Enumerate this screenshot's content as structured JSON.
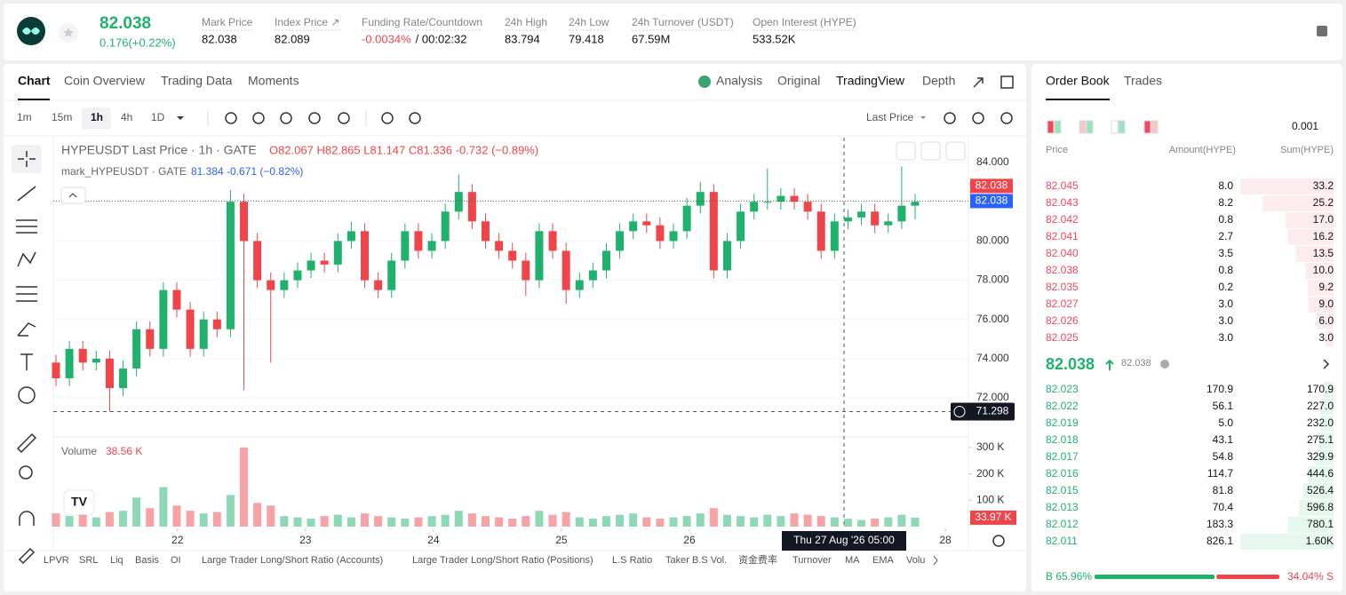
{
  "header": {
    "price": "82.038",
    "change": "0.176(+0.22%)",
    "stats": [
      {
        "label": "Mark Price",
        "value": "82.038"
      },
      {
        "label": "Index Price ↗",
        "value": "82.089"
      },
      {
        "label": "Funding Rate/Countdown",
        "value": "-0.0034%",
        "extra": "/ 00:02:32"
      },
      {
        "label": "24h High",
        "value": "83.794"
      },
      {
        "label": "24h Low",
        "value": "79.418"
      },
      {
        "label": "24h Turnover (USDT)",
        "value": "67.59M"
      },
      {
        "label": "Open Interest (HYPE)",
        "value": "533.52K"
      }
    ]
  },
  "chart_tabs": [
    "Chart",
    "Coin Overview",
    "Trading Data",
    "Moments"
  ],
  "view_tabs": [
    "Analysis",
    "Original",
    "TradingView",
    "Depth"
  ],
  "intervals": [
    "1m",
    "15m",
    "1h",
    "4h",
    "1D"
  ],
  "price_type": "Last Price",
  "chart_data": {
    "type": "candlestick",
    "legend": "HYPEUSDT Last Price · 1h · GATE",
    "ohlc_text": "O82.067 H82.865 L81.147 C81.336 -0.732 (−0.89%)",
    "mark_legend": "mark_HYPEUSDT · GATE",
    "mark_text": "81.384 -0.671 (−0.82%)",
    "open": [
      73.8,
      73.0,
      74.5,
      73.8,
      74.0,
      72.5,
      73.5,
      75.5,
      74.5,
      77.5,
      76.5,
      74.5,
      76.0,
      75.5,
      82.0,
      80.0,
      78.0,
      77.5,
      78.0,
      78.5,
      79.0,
      78.8,
      80.0,
      80.5,
      78.0,
      77.5,
      79.0,
      80.5,
      79.5,
      80.0,
      81.5,
      82.5,
      81.0,
      80.0,
      79.5,
      79.0,
      78.0,
      80.5,
      79.5,
      77.5,
      78.0,
      78.5,
      79.5,
      80.5,
      81.0,
      80.8,
      80.0,
      80.5,
      81.8,
      82.5,
      78.5,
      80.0,
      81.5,
      82.0,
      82.0,
      82.3,
      82.0,
      81.5,
      79.5,
      81.0,
      81.2,
      81.5,
      80.8,
      81.0,
      81.8
    ],
    "high": [
      74.2,
      74.9,
      74.9,
      74.4,
      74.4,
      73.9,
      75.9,
      75.9,
      77.9,
      77.9,
      76.9,
      76.4,
      76.4,
      82.6,
      82.4,
      80.4,
      78.4,
      78.4,
      78.9,
      79.4,
      79.4,
      80.4,
      81.0,
      80.9,
      78.4,
      79.4,
      80.9,
      80.9,
      80.4,
      81.9,
      83.4,
      82.9,
      81.4,
      80.4,
      79.9,
      79.4,
      80.9,
      80.9,
      79.9,
      78.4,
      78.9,
      79.9,
      80.9,
      81.4,
      81.4,
      81.2,
      80.9,
      82.2,
      83.0,
      82.9,
      80.4,
      81.9,
      82.4,
      83.7,
      82.7,
      82.7,
      82.4,
      81.9,
      81.4,
      81.6,
      81.9,
      81.9,
      81.4,
      83.8,
      82.4
    ],
    "low": [
      72.6,
      72.6,
      73.4,
      73.4,
      71.3,
      72.1,
      73.1,
      74.1,
      74.1,
      76.1,
      74.1,
      74.1,
      75.1,
      75.1,
      72.4,
      77.6,
      73.8,
      77.1,
      77.6,
      78.1,
      78.4,
      78.4,
      79.6,
      77.6,
      77.1,
      77.1,
      78.6,
      79.1,
      79.1,
      79.6,
      81.1,
      80.6,
      79.6,
      79.1,
      78.6,
      77.2,
      77.6,
      79.1,
      76.8,
      77.1,
      77.6,
      78.1,
      79.1,
      80.1,
      80.4,
      79.6,
      79.6,
      80.1,
      81.4,
      78.1,
      78.1,
      79.6,
      81.1,
      81.6,
      81.6,
      81.6,
      81.1,
      79.1,
      79.1,
      80.6,
      80.8,
      80.4,
      80.4,
      80.6,
      81.1
    ],
    "close": [
      73.0,
      74.5,
      73.8,
      74.0,
      72.5,
      73.5,
      75.5,
      74.5,
      77.5,
      76.5,
      74.5,
      76.0,
      75.5,
      82.0,
      80.0,
      78.0,
      77.5,
      78.0,
      78.5,
      79.0,
      78.8,
      80.0,
      80.5,
      78.0,
      77.5,
      79.0,
      80.5,
      79.5,
      80.0,
      81.5,
      82.5,
      81.0,
      80.0,
      79.5,
      79.0,
      78.0,
      80.5,
      79.5,
      77.5,
      78.0,
      78.5,
      79.5,
      80.5,
      81.0,
      80.8,
      80.0,
      80.5,
      81.8,
      82.5,
      78.5,
      80.0,
      81.5,
      82.0,
      82.0,
      82.3,
      82.0,
      81.5,
      79.5,
      81.0,
      81.2,
      81.5,
      80.8,
      81.0,
      81.8,
      82.0
    ],
    "volume": [
      50000,
      40000,
      45000,
      35000,
      55000,
      60000,
      110000,
      70000,
      150000,
      80000,
      60000,
      50000,
      55000,
      120000,
      300000,
      90000,
      80000,
      40000,
      35000,
      30000,
      40000,
      45000,
      35000,
      50000,
      40000,
      35000,
      30000,
      35000,
      40000,
      45000,
      60000,
      50000,
      40000,
      35000,
      30000,
      40000,
      60000,
      45000,
      55000,
      35000,
      30000,
      40000,
      45000,
      50000,
      35000,
      30000,
      35000,
      40000,
      50000,
      70000,
      45000,
      40000,
      35000,
      45000,
      40000,
      50000,
      45000,
      40000,
      35000,
      30000,
      25000,
      30000,
      35000,
      45000,
      33970
    ],
    "ylim": [
      70.1,
      85.27
    ],
    "yticks": [
      {
        "value": 72,
        "label": "72.000"
      },
      {
        "value": 74,
        "label": "74.000"
      },
      {
        "value": 76,
        "label": "76.000"
      },
      {
        "value": 78,
        "label": "78.000"
      },
      {
        "value": 80,
        "label": "80.000"
      },
      {
        "value": 84,
        "label": "84.000"
      }
    ],
    "volume_ylim": [
      0,
      330000
    ],
    "volume_yticks": [
      {
        "value": 100000,
        "label": "100 K"
      },
      {
        "value": 200000,
        "label": "200 K"
      },
      {
        "value": 300000,
        "label": "300 K"
      }
    ],
    "xlim": [
      21.03,
      28.18
    ],
    "xticks": [
      22,
      23,
      24,
      25,
      26,
      28
    ],
    "grid": true,
    "last_price": {
      "value": 82.038,
      "label": "82.038"
    },
    "mark_price_label": "82.038",
    "crosshair_price": {
      "value": 71.298,
      "label": "71.298"
    },
    "crosshair_time": "Thu 27 Aug '26   05:00",
    "volume_title": "Volume",
    "volume_value": "38.56 K",
    "volume_last": {
      "value": 33970,
      "label": "33.97 K"
    },
    "up_color": "#20b26c",
    "down_color": "#ef454a"
  },
  "indicators": [
    "LPVR",
    "SRL",
    "Liq",
    "Basis",
    "OI",
    "Large Trader Long/Short Ratio (Accounts)",
    "Large Trader Long/Short Ratio (Positions)",
    "L.S Ratio",
    "Taker B.S Vol.",
    "资金费率",
    "Turnover",
    "MA",
    "EMA",
    "Volu"
  ],
  "order_book": {
    "tabs": [
      "Order Book",
      "Trades"
    ],
    "precision": "0.001",
    "headers": [
      "Price",
      "Amount(HYPE)",
      "Sum(HYPE)"
    ],
    "asks": {
      "prices": [
        "82.045",
        "82.043",
        "82.042",
        "82.041",
        "82.040",
        "82.038",
        "82.035",
        "82.027",
        "82.026",
        "82.025"
      ],
      "amounts": [
        "8.0",
        "8.2",
        "0.8",
        "2.7",
        "3.5",
        "0.8",
        "0.2",
        "3.0",
        "3.0",
        "3.0"
      ],
      "sums": [
        33.2,
        25.2,
        17.0,
        16.2,
        13.5,
        10.0,
        9.2,
        9.0,
        6.0,
        3.0
      ],
      "sum_labels": [
        "33.2",
        "25.2",
        "17.0",
        "16.2",
        "13.5",
        "10.0",
        "9.2",
        "9.0",
        "6.0",
        "3.0"
      ]
    },
    "mid_price": "82.038",
    "mid_mark": "82.038",
    "bids": {
      "prices": [
        "82.023",
        "82.022",
        "82.019",
        "82.018",
        "82.017",
        "82.016",
        "82.015",
        "82.013",
        "82.012",
        "82.011"
      ],
      "amounts": [
        "170.9",
        "56.1",
        "5.0",
        "43.1",
        "54.8",
        "114.7",
        "81.8",
        "70.4",
        "183.3",
        "826.1"
      ],
      "sums": [
        170.9,
        227.0,
        232.0,
        275.1,
        329.9,
        444.6,
        526.4,
        596.8,
        780.1,
        1600
      ],
      "sum_labels": [
        "170.9",
        "227.0",
        "232.0",
        "275.1",
        "329.9",
        "444.6",
        "526.4",
        "596.8",
        "780.1",
        "1.60K"
      ]
    },
    "buy": 65.96,
    "buy_label": "B 65.96%",
    "sell": 34.04,
    "sell_label": "34.04% S"
  }
}
